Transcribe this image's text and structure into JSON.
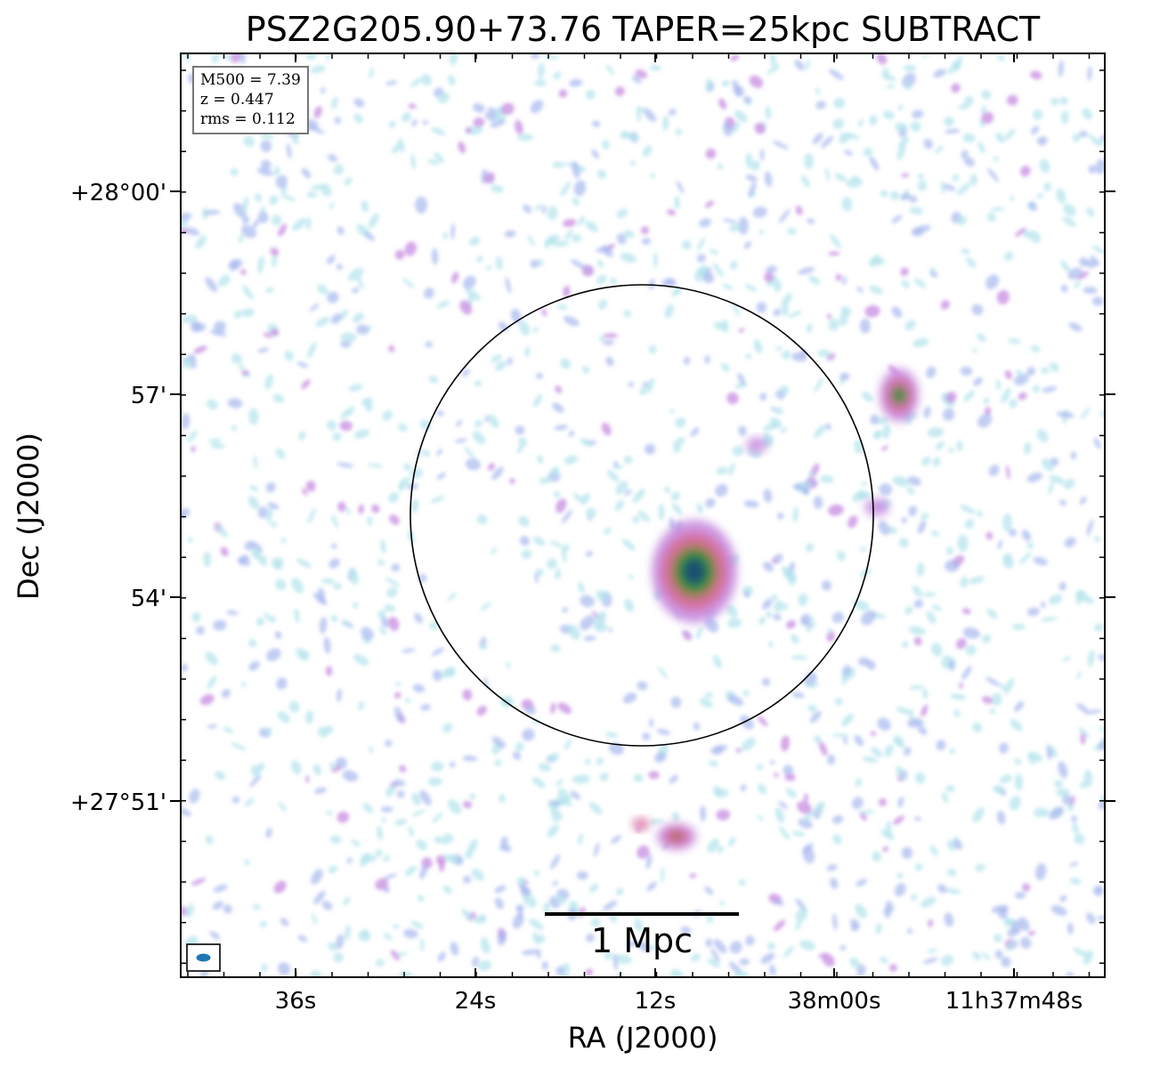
{
  "title": "PSZ2G205.90+73.76 TAPER=25kpc SUBTRACT",
  "x_axis": {
    "label": "RA (J2000)",
    "ticks": [
      "36s",
      "24s",
      "12s",
      "38m00s",
      "11h37m48s"
    ]
  },
  "y_axis": {
    "label": "Dec (J2000)",
    "ticks": [
      "+28°00'",
      "57'",
      "54'",
      "+27°51'"
    ]
  },
  "info": {
    "mass": "M500 = 7.39",
    "redshift": "z = 0.447",
    "rms": "rms = 0.112"
  },
  "scalebar": {
    "label": "1 Mpc"
  },
  "colors": {
    "faint": "#b7e4ec",
    "low": "#a8b8ee",
    "mid": "#c78ce0",
    "high": "#d7709e",
    "peak": "#2f8f3a",
    "core": "#1e4f6e",
    "beam": "#1f77b4"
  }
}
